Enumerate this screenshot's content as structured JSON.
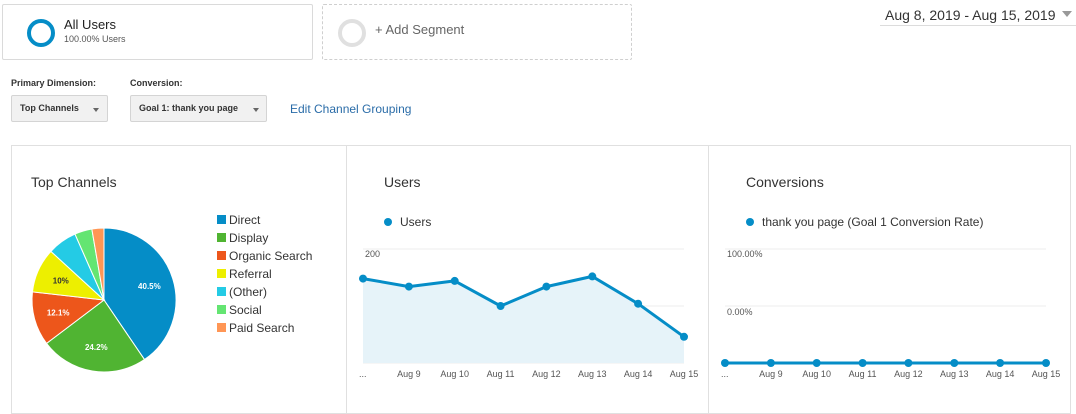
{
  "segments": {
    "all_users": {
      "name": "All Users",
      "percent": "100.00% Users"
    },
    "add_segment": {
      "label": "+ Add Segment"
    }
  },
  "date_range": {
    "text": "Aug 8, 2019 - Aug 15, 2019"
  },
  "controls": {
    "primary_dimension": {
      "label": "Primary Dimension:",
      "value": "Top Channels"
    },
    "conversion": {
      "label": "Conversion:",
      "value": "Goal 1: thank you page"
    },
    "edit_link": "Edit Channel Grouping"
  },
  "colors": {
    "accent": "#058dc7",
    "area_fill": "#e6f3f9",
    "link": "#2a6ca8"
  },
  "chart_data": [
    {
      "type": "pie",
      "title": "Top Channels",
      "slices": [
        {
          "name": "Direct",
          "value": 40.5,
          "color": "#058dc7",
          "label": "40.5%"
        },
        {
          "name": "Display",
          "value": 24.2,
          "color": "#50b432",
          "label": "24.2%"
        },
        {
          "name": "Organic Search",
          "value": 12.1,
          "color": "#ed561b",
          "label": "12.1%"
        },
        {
          "name": "Referral",
          "value": 10,
          "color": "#edef00",
          "label": "10%"
        },
        {
          "name": "(Other)",
          "value": 6.6,
          "color": "#24cbe5",
          "label": ""
        },
        {
          "name": "Social",
          "value": 3.9,
          "color": "#64e572",
          "label": ""
        },
        {
          "name": "Paid Search",
          "value": 2.7,
          "color": "#ff9655",
          "label": ""
        }
      ]
    },
    {
      "type": "area",
      "title": "Users",
      "series": [
        {
          "name": "Users",
          "values": [
            148,
            134,
            144,
            100,
            134,
            152,
            104,
            46
          ]
        }
      ],
      "categories": [
        "...",
        "Aug 9",
        "Aug 10",
        "Aug 11",
        "Aug 12",
        "Aug 13",
        "Aug 14",
        "Aug 15"
      ],
      "ylim": [
        0,
        200
      ],
      "yticks": [
        100,
        200
      ],
      "grid": true
    },
    {
      "type": "line",
      "title": "Conversions",
      "series": [
        {
          "name": "thank you page (Goal 1 Conversion Rate)",
          "values": [
            0,
            0,
            0,
            0,
            0,
            0,
            0,
            0
          ]
        }
      ],
      "categories": [
        "...",
        "Aug 9",
        "Aug 10",
        "Aug 11",
        "Aug 12",
        "Aug 13",
        "Aug 14",
        "Aug 15"
      ],
      "ylim": [
        0,
        100
      ],
      "yticks": [
        "100.00%",
        "0.00%"
      ],
      "grid": true
    }
  ]
}
